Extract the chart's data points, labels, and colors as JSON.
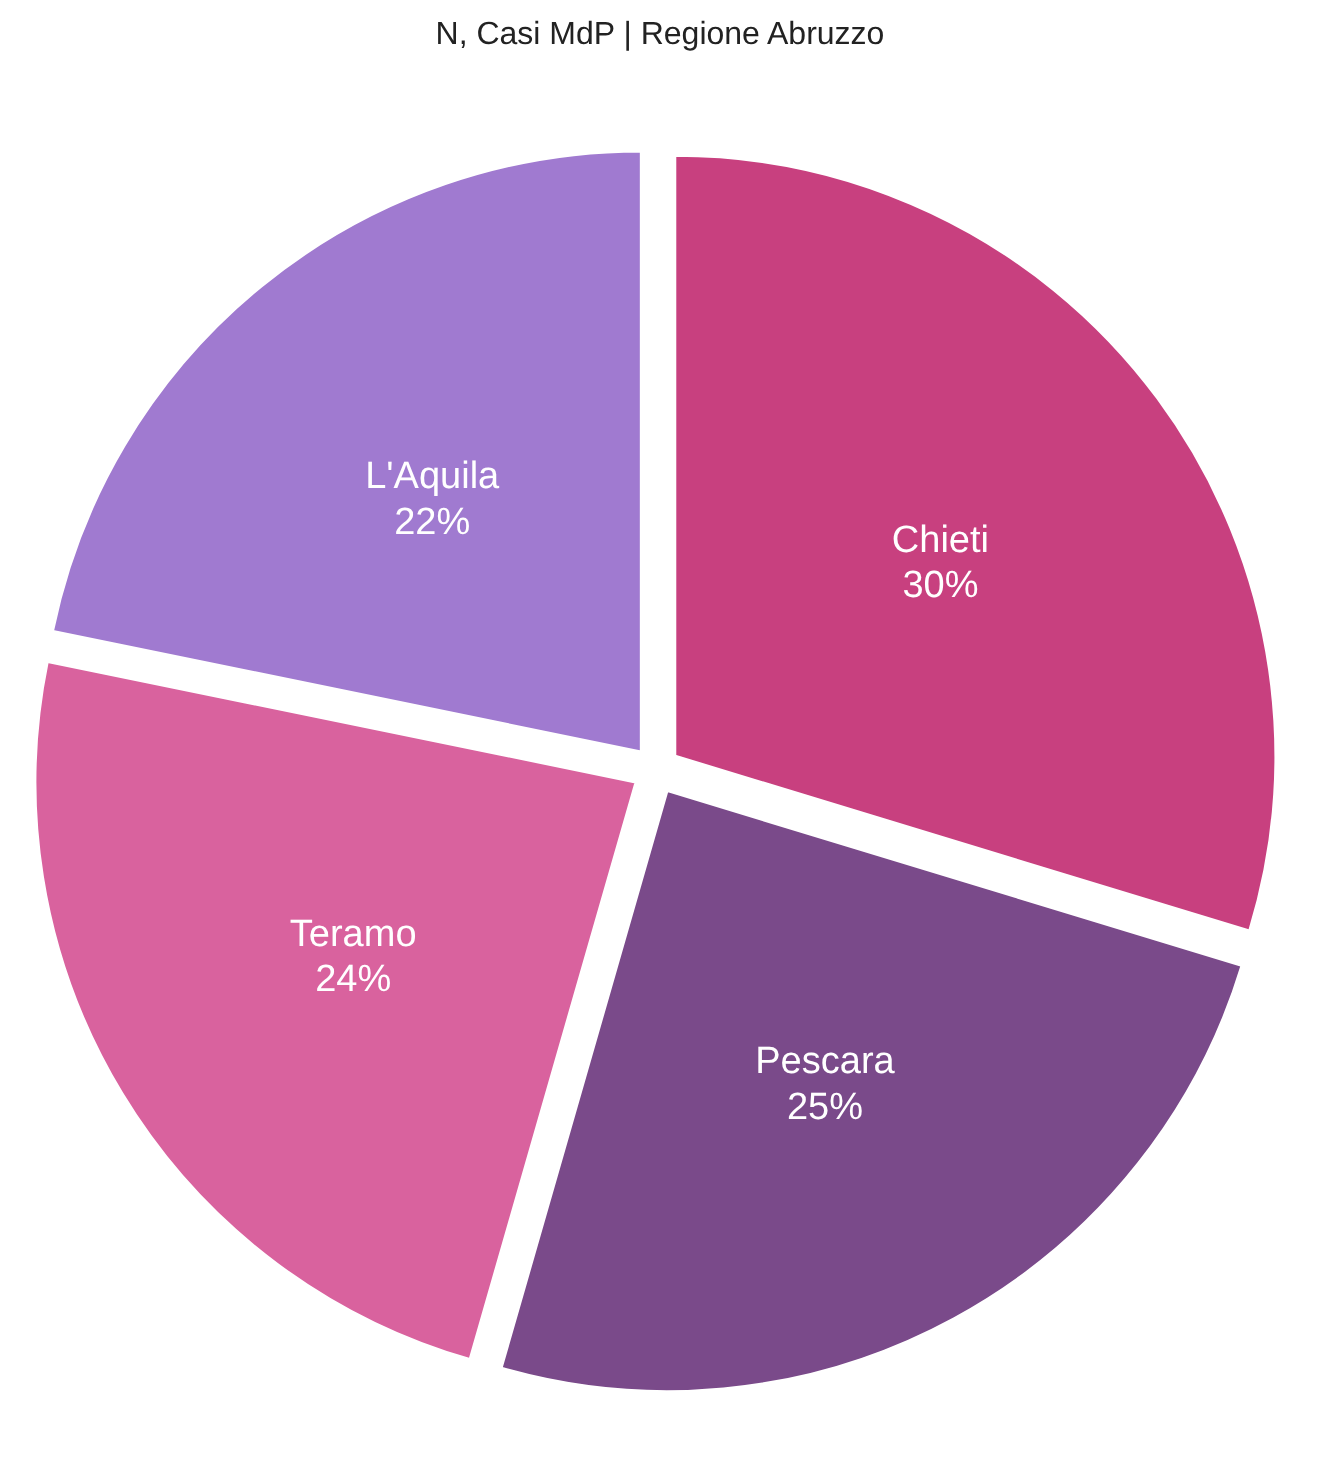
{
  "chart_data": {
    "type": "pie",
    "title": "N, Casi MdP | Regione Abruzzo",
    "categories": [
      "Chieti",
      "Pescara",
      "Teramo",
      "L'Aquila"
    ],
    "values": [
      30,
      25,
      24,
      22
    ],
    "value_labels": [
      "30%",
      "25%",
      "24%",
      "22%"
    ],
    "colors": [
      "#c8407f",
      "#7a4a8a",
      "#d9629e",
      "#a07ad0"
    ]
  }
}
